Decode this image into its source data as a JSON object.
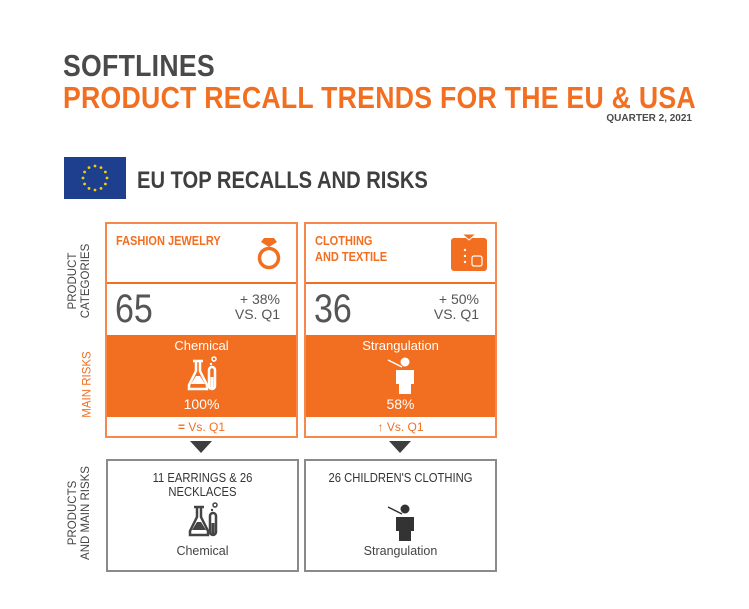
{
  "header": {
    "category": "SOFTLINES",
    "title": "PRODUCT RECALL TRENDS FOR THE EU & USA",
    "period": "QUARTER 2, 2021"
  },
  "section": {
    "title": "EU TOP RECALLS AND RISKS",
    "flag_icon": "eu-flag"
  },
  "side_labels": {
    "product_categories_1": "PRODUCT",
    "product_categories_2": "CATEGORIES",
    "main_risks": "MAIN RISKS",
    "products_1": "PRODUCTS",
    "products_2": "AND MAIN RISKS"
  },
  "colors": {
    "accent": "#f26f21",
    "dark": "#4a4a4a",
    "flag": "#1e3e8e"
  },
  "cards": [
    {
      "category_1": "FASHION JEWELRY",
      "category_2": "",
      "icon": "ring-icon",
      "count": "65",
      "change": "+ 38%",
      "vs": "VS. Q1",
      "risk": "Chemical",
      "risk_icon": "lab-flask-icon",
      "risk_pct": "100%",
      "trend_icon": "equal-icon",
      "trend_symbol": "=",
      "trend_label": "Vs. Q1",
      "products": "11 EARRINGS & 26 NECKLACES",
      "product_risk": "Chemical"
    },
    {
      "category_1": "CLOTHING",
      "category_2": "AND TEXTILE",
      "icon": "shirt-icon",
      "count": "36",
      "change": "+ 50%",
      "vs": "VS. Q1",
      "risk": "Strangulation",
      "risk_icon": "strangulation-person-icon",
      "risk_pct": "58%",
      "trend_icon": "arrow-up-icon",
      "trend_symbol": "🠅",
      "trend_label": "Vs. Q1",
      "products": "26 CHILDREN'S CLOTHING",
      "product_risk": "Strangulation"
    }
  ]
}
